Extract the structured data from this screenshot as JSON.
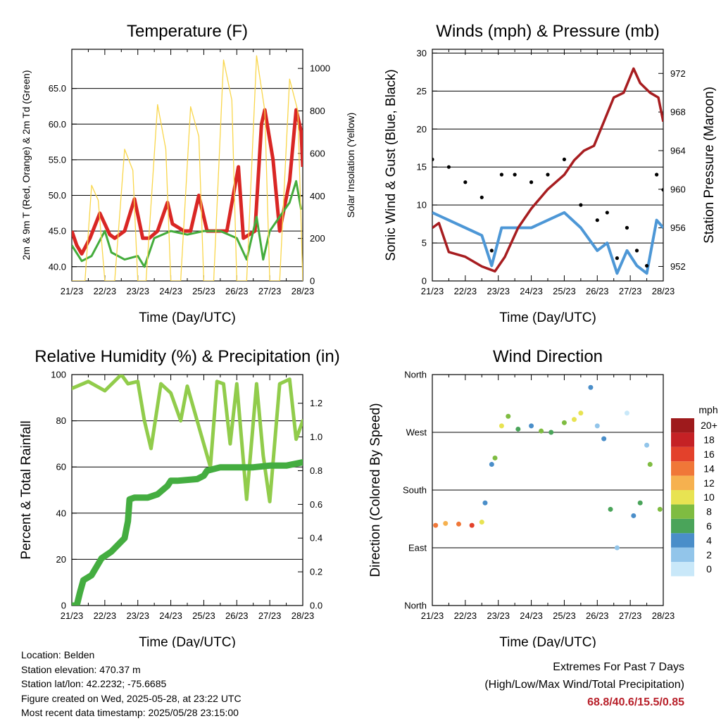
{
  "colors": {
    "temp_red": "#d92624",
    "temp_orange": "#f08a3c",
    "dewpoint_green": "#44ac3c",
    "solar_yellow": "#f9d64a",
    "wind_blue": "#4d97d6",
    "gust_black": "#000000",
    "pressure_maroon": "#a71d20",
    "rh_lightgreen": "#91cc4b",
    "rain_green": "#44ad40"
  },
  "chart_data": [
    {
      "id": "temperature",
      "type": "line",
      "title": "Temperature (F)",
      "xlabel": "Time (Day/UTC)",
      "ylabel": "2m & 9m T (Red, Orange) & 2m Td (Green)",
      "ylabel_right": "Solar Insolation (Yellow)",
      "x_ticks": [
        "21/23",
        "22/23",
        "23/23",
        "24/23",
        "25/23",
        "26/23",
        "27/23",
        "28/23"
      ],
      "ylim": [
        38,
        70.5
      ],
      "y_ticks": [
        "40.0",
        "45.0",
        "50.0",
        "55.0",
        "60.0",
        "65.0"
      ],
      "y2lim": [
        0,
        1090
      ],
      "y2_ticks": [
        "0",
        "200",
        "400",
        "600",
        "800",
        "1000"
      ],
      "series": [
        {
          "name": "2m T",
          "color": "temp_red",
          "x": [
            0,
            0.15,
            0.3,
            0.55,
            0.85,
            1.15,
            1.3,
            1.6,
            1.9,
            2.15,
            2.35,
            2.6,
            2.9,
            3.05,
            3.4,
            3.6,
            3.85,
            4.1,
            4.35,
            4.7,
            5.05,
            5.2,
            5.55,
            5.75,
            5.85,
            6.1,
            6.3,
            6.6,
            6.8,
            6.95,
            7.0
          ],
          "y": [
            45,
            43,
            41.8,
            44,
            47.5,
            44.5,
            44,
            45,
            49.5,
            44,
            44,
            45,
            49,
            46,
            45,
            45,
            50,
            45,
            45,
            45,
            54,
            44,
            45,
            60,
            62,
            55,
            45,
            52,
            62,
            59,
            54
          ]
        },
        {
          "name": "2m Td",
          "color": "dewpoint_green",
          "x": [
            0,
            0.3,
            0.6,
            1.0,
            1.2,
            1.6,
            2.0,
            2.2,
            2.5,
            3.0,
            3.5,
            4.0,
            4.5,
            5.0,
            5.3,
            5.6,
            5.8,
            6.0,
            6.3,
            6.6,
            6.8,
            6.95
          ],
          "y": [
            43,
            40.8,
            41.5,
            45,
            42,
            41,
            41.5,
            40,
            44,
            45,
            44.5,
            45,
            45,
            44,
            41,
            47,
            41,
            45,
            47,
            49,
            52,
            48
          ]
        },
        {
          "name": "Solar",
          "color": "solar_yellow",
          "x": [
            0,
            0.4,
            0.6,
            0.8,
            1.0,
            1.3,
            1.6,
            1.85,
            2.0,
            2.25,
            2.6,
            2.85,
            3.0,
            3.3,
            3.6,
            3.85,
            4.0,
            4.3,
            4.6,
            4.85,
            5.0,
            5.3,
            5.6,
            5.85,
            6.0,
            6.3,
            6.6,
            6.85,
            7.0
          ],
          "y": [
            0,
            0,
            450,
            380,
            0,
            0,
            620,
            520,
            0,
            0,
            830,
            620,
            0,
            0,
            820,
            680,
            0,
            0,
            1040,
            850,
            0,
            0,
            1060,
            800,
            0,
            0,
            950,
            800,
            0
          ]
        }
      ]
    },
    {
      "id": "winds",
      "type": "scatter",
      "title": "Winds (mph) & Pressure (mb)",
      "xlabel": "Time (Day/UTC)",
      "ylabel": "Sonic Wind & Gust (Blue, Black)",
      "ylabel_right": "Station Pressure (Maroon)",
      "x_ticks": [
        "21/23",
        "22/23",
        "23/23",
        "24/23",
        "25/23",
        "26/23",
        "27/23",
        "28/23"
      ],
      "ylim": [
        0,
        30.5
      ],
      "y_ticks": [
        "0",
        "5",
        "10",
        "15",
        "20",
        "25",
        "30"
      ],
      "y2lim": [
        950.5,
        974.5
      ],
      "y2_ticks": [
        "952",
        "956",
        "960",
        "964",
        "968",
        "972"
      ],
      "series": [
        {
          "name": "Sonic Wind",
          "color": "wind_blue",
          "x": [
            0,
            0.5,
            1.0,
            1.5,
            1.8,
            2.1,
            2.5,
            3.0,
            3.5,
            4.0,
            4.5,
            5.0,
            5.3,
            5.6,
            5.9,
            6.2,
            6.5,
            6.8,
            7.0
          ],
          "y": [
            9,
            8,
            7,
            6,
            2,
            7,
            7,
            7,
            8,
            9,
            7,
            4,
            5,
            1,
            4,
            2,
            1,
            8,
            7
          ]
        },
        {
          "name": "Gust",
          "color": "gust_black",
          "x": [
            0,
            0.5,
            1.0,
            1.5,
            1.8,
            2.1,
            2.5,
            3.0,
            3.5,
            4.0,
            4.5,
            5.0,
            5.3,
            5.6,
            5.9,
            6.2,
            6.5,
            6.8,
            7.0
          ],
          "y": [
            16,
            15,
            13,
            11,
            4,
            14,
            14,
            13,
            14,
            16,
            10,
            8,
            9,
            3,
            7,
            4,
            2,
            14,
            12
          ]
        },
        {
          "name": "Station Pressure",
          "color": "pressure_maroon",
          "x": [
            0,
            0.2,
            0.5,
            1.0,
            1.5,
            1.9,
            2.2,
            2.6,
            3.0,
            3.5,
            4.0,
            4.3,
            4.6,
            4.9,
            5.2,
            5.5,
            5.8,
            6.1,
            6.3,
            6.6,
            6.85,
            7.0
          ],
          "y": [
            956,
            956.5,
            953.5,
            953,
            952,
            951.5,
            953,
            956,
            958,
            960,
            961.5,
            963,
            964,
            964.5,
            967,
            969.5,
            970,
            972.5,
            971,
            970,
            969.5,
            967
          ]
        }
      ]
    },
    {
      "id": "humidity",
      "type": "line",
      "title": "Relative Humidity (%) & Precipitation (in)",
      "xlabel": "Time (Day/UTC)",
      "ylabel": "Percent & Total Rainfall",
      "x_ticks": [
        "21/23",
        "22/23",
        "23/23",
        "24/23",
        "25/23",
        "26/23",
        "27/23",
        "28/23"
      ],
      "ylim": [
        0,
        100
      ],
      "y_ticks": [
        "0",
        "20",
        "40",
        "60",
        "80",
        "100"
      ],
      "y2lim": [
        0,
        1.37
      ],
      "y2_ticks": [
        "0.0",
        "0.2",
        "0.4",
        "0.6",
        "0.8",
        "1.0",
        "1.2"
      ],
      "series": [
        {
          "name": "Relative Humidity",
          "color": "rh_lightgreen",
          "x": [
            0,
            0.5,
            1.0,
            1.5,
            1.7,
            2.0,
            2.2,
            2.4,
            2.7,
            3.0,
            3.3,
            3.5,
            3.9,
            4.2,
            4.4,
            4.6,
            4.8,
            5.0,
            5.3,
            5.6,
            5.8,
            6.0,
            6.3,
            6.6,
            6.8,
            6.9,
            7.0
          ],
          "y": [
            94,
            97,
            93,
            100,
            96,
            97,
            80,
            68,
            96,
            92,
            80,
            95,
            75,
            60,
            97,
            96,
            70,
            96,
            46,
            96,
            65,
            45,
            96,
            98,
            72,
            76,
            80
          ]
        },
        {
          "name": "Total Rainfall",
          "color": "rain_green",
          "x": [
            0,
            0.15,
            0.25,
            0.35,
            0.6,
            0.9,
            1.2,
            1.6,
            1.7,
            1.75,
            1.9,
            2.3,
            2.6,
            2.9,
            3.0,
            3.2,
            3.8,
            4.0,
            4.1,
            4.5,
            5.0,
            5.5,
            6.0,
            6.5,
            7.0
          ],
          "y": [
            0,
            0,
            0.08,
            0.15,
            0.18,
            0.28,
            0.32,
            0.4,
            0.5,
            0.63,
            0.64,
            0.64,
            0.66,
            0.71,
            0.74,
            0.74,
            0.75,
            0.77,
            0.8,
            0.82,
            0.82,
            0.82,
            0.83,
            0.83,
            0.85
          ]
        }
      ]
    },
    {
      "id": "wind-direction",
      "type": "scatter",
      "title": "Wind Direction",
      "xlabel": "Time (Day/UTC)",
      "ylabel": "Direction (Colored By Speed)",
      "x_ticks": [
        "21/23",
        "22/23",
        "23/23",
        "24/23",
        "25/23",
        "26/23",
        "27/23",
        "28/23"
      ],
      "ylim": [
        0,
        360
      ],
      "y_ticks": [
        "North",
        "East",
        "South",
        "West",
        "North"
      ],
      "legend_title": "mph",
      "legend_labels": [
        "0",
        "2",
        "4",
        "6",
        "8",
        "10",
        "12",
        "14",
        "16",
        "18",
        "20+"
      ],
      "legend_colors": [
        "#c9e8f9",
        "#92c5ea",
        "#4a8ec9",
        "#4aa45a",
        "#7fbc41",
        "#e8e352",
        "#f6b14f",
        "#f07738",
        "#e3412b",
        "#c52125",
        "#9e1a1c"
      ],
      "series": [
        {
          "name": "Direction",
          "x": [
            0.1,
            0.4,
            0.8,
            1.2,
            1.5,
            1.6,
            1.8,
            1.9,
            2.1,
            2.3,
            2.6,
            3.0,
            3.3,
            3.6,
            4.0,
            4.3,
            4.5,
            4.8,
            5.0,
            5.2,
            5.4,
            5.6,
            5.9,
            6.1,
            6.3,
            6.5,
            6.6,
            6.9
          ],
          "y": [
            125,
            128,
            127,
            125,
            130,
            160,
            220,
            230,
            280,
            295,
            275,
            280,
            272,
            270,
            285,
            290,
            300,
            340,
            280,
            260,
            150,
            90,
            300,
            140,
            160,
            250,
            220,
            150
          ],
          "speed": [
            14,
            12,
            15,
            16,
            10,
            4,
            4,
            8,
            10,
            8,
            6,
            5,
            8,
            7,
            9,
            10,
            11,
            4,
            2,
            4,
            6,
            2,
            1,
            4,
            6,
            2,
            8,
            8
          ]
        }
      ]
    }
  ],
  "footer_left": [
    "Location: Belden",
    "Station elevation: 470.37 m",
    "Station lat/lon: 42.2232; -75.6685",
    "Figure created on Wed, 2025-05-28, at 23:22 UTC",
    "Most recent data timestamp: 2025/05/28 23:15:00"
  ],
  "footer_right": {
    "heading": "Extremes For Past 7 Days",
    "subheading": "(High/Low/Max Wind/Total Precipitation)",
    "values": "68.8/40.6/15.5/0.85"
  }
}
